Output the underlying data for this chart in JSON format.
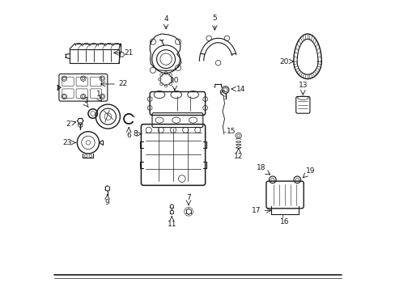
{
  "bg_color": "#ffffff",
  "line_color": "#1a1a1a",
  "figsize": [
    4.89,
    3.6
  ],
  "dpi": 100,
  "labels": {
    "1": [
      0.158,
      0.595,
      "right",
      0.148,
      0.608
    ],
    "2": [
      0.06,
      0.548,
      "left",
      0.072,
      0.548
    ],
    "3": [
      0.113,
      0.595,
      "left",
      0.125,
      0.608
    ],
    "4": [
      0.435,
      0.938,
      "center",
      0.435,
      0.95
    ],
    "5": [
      0.57,
      0.938,
      "center",
      0.57,
      0.95
    ],
    "6": [
      0.255,
      0.548,
      "left",
      0.265,
      0.548
    ],
    "7": [
      0.468,
      0.182,
      "center",
      0.468,
      0.17
    ],
    "8": [
      0.31,
      0.49,
      "right",
      0.298,
      0.49
    ],
    "9": [
      0.188,
      0.182,
      "center",
      0.188,
      0.17
    ],
    "10": [
      0.422,
      0.565,
      "center",
      0.422,
      0.578
    ],
    "11": [
      0.41,
      0.182,
      "center",
      0.41,
      0.17
    ],
    "12": [
      0.64,
      0.468,
      "center",
      0.64,
      0.455
    ],
    "13": [
      0.862,
      0.578,
      "center",
      0.862,
      0.59
    ],
    "14": [
      0.612,
      0.688,
      "left",
      0.622,
      0.688
    ],
    "15": [
      0.59,
      0.525,
      "left",
      0.6,
      0.525
    ],
    "16": [
      0.74,
      0.148,
      "center",
      0.74,
      0.135
    ],
    "17": [
      0.68,
      0.258,
      "left",
      0.69,
      0.258
    ],
    "18": [
      0.79,
      0.365,
      "left",
      0.8,
      0.365
    ],
    "19": [
      0.878,
      0.365,
      "left",
      0.888,
      0.365
    ],
    "20": [
      0.822,
      0.728,
      "left",
      0.832,
      0.728
    ],
    "21": [
      0.248,
      0.838,
      "left",
      0.258,
      0.838
    ],
    "22": [
      0.22,
      0.698,
      "left",
      0.23,
      0.698
    ],
    "23": [
      0.072,
      0.448,
      "left",
      0.082,
      0.448
    ]
  }
}
